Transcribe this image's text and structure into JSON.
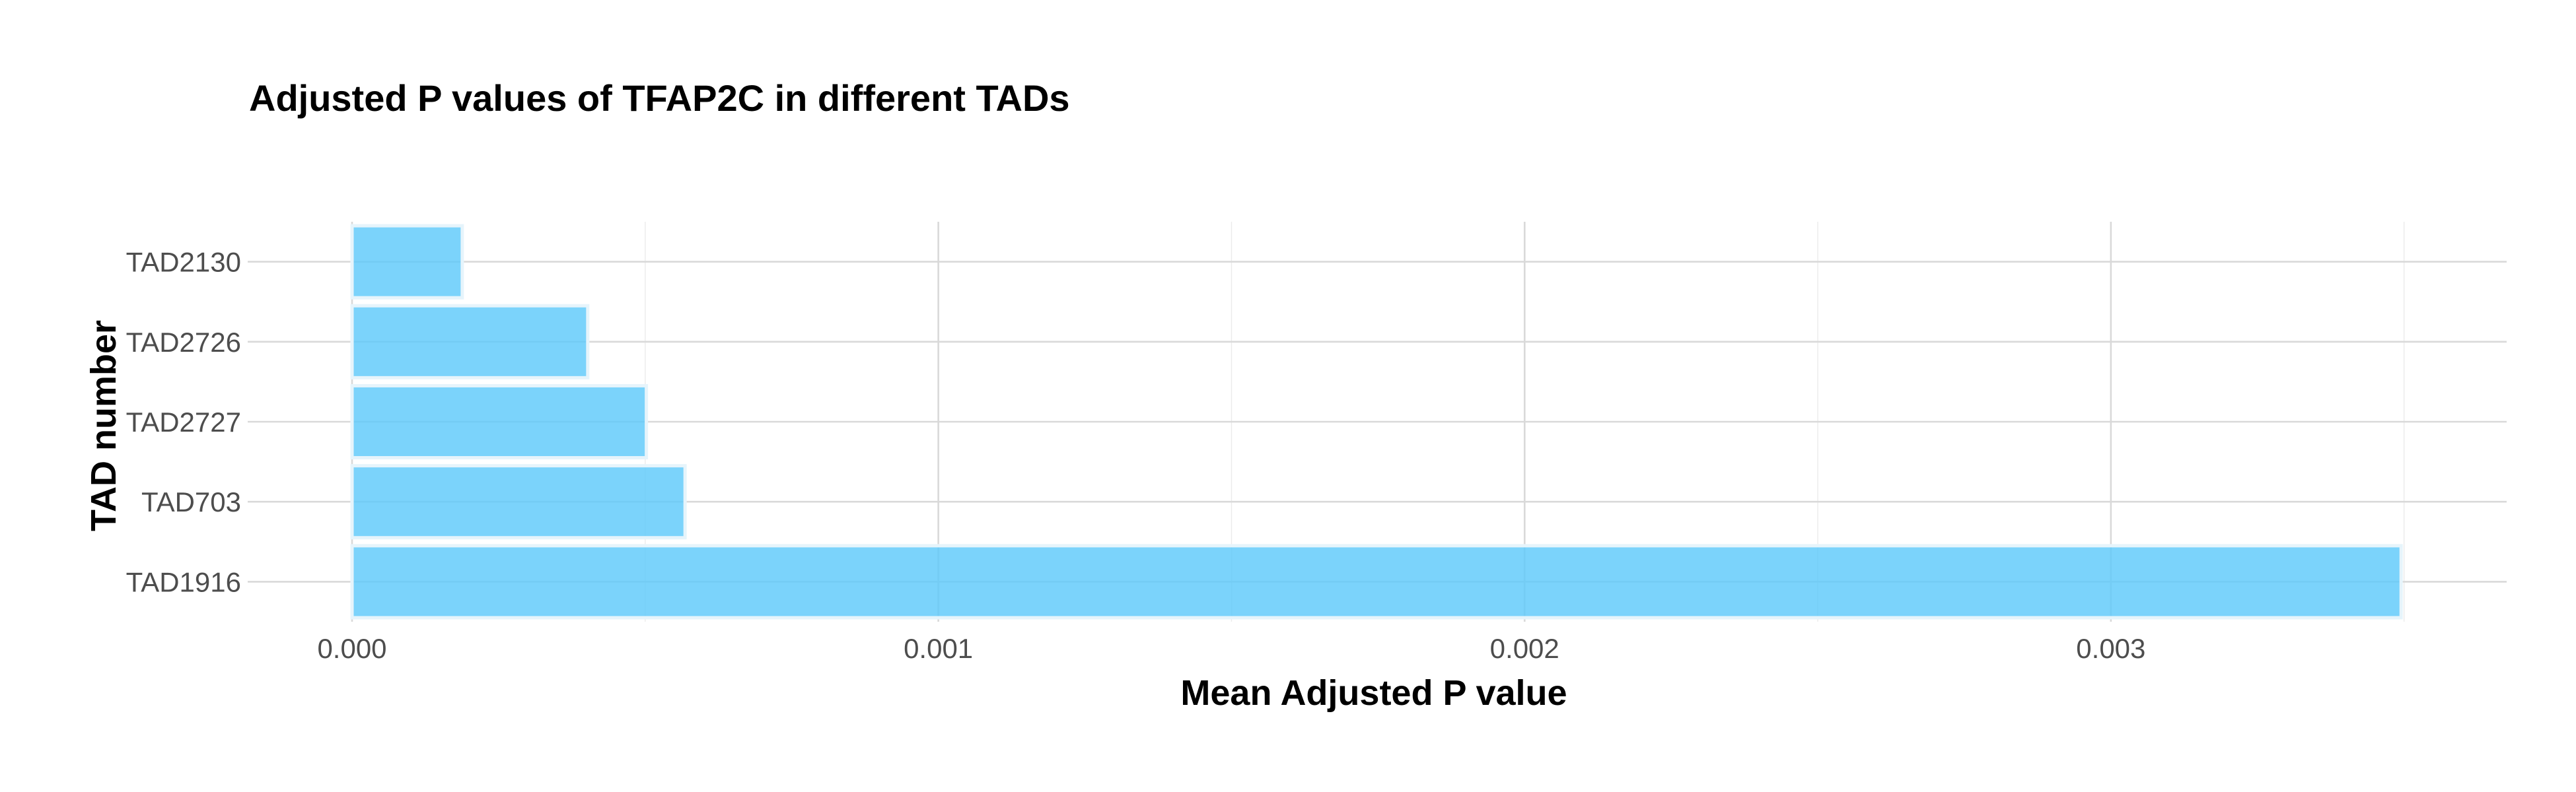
{
  "chart_data": {
    "type": "bar",
    "orientation": "horizontal",
    "title": "Adjusted P values of TFAP2C in different TADs",
    "xlabel": "Mean Adjusted P value",
    "ylabel": "TAD number",
    "categories": [
      "TAD2130",
      "TAD2726",
      "TAD2727",
      "TAD703",
      "TAD1916"
    ],
    "values": [
      0.000188,
      0.000402,
      0.000502,
      0.000568,
      0.003495
    ],
    "xlim": [
      0,
      0.003675
    ],
    "x_ticks": [
      0.0,
      0.001,
      0.002,
      0.003
    ],
    "x_tick_labels": [
      "0.000",
      "0.001",
      "0.002",
      "0.003"
    ],
    "grid": true,
    "bar_color": "#5ac8fa",
    "bar_opacity": 0.8
  }
}
